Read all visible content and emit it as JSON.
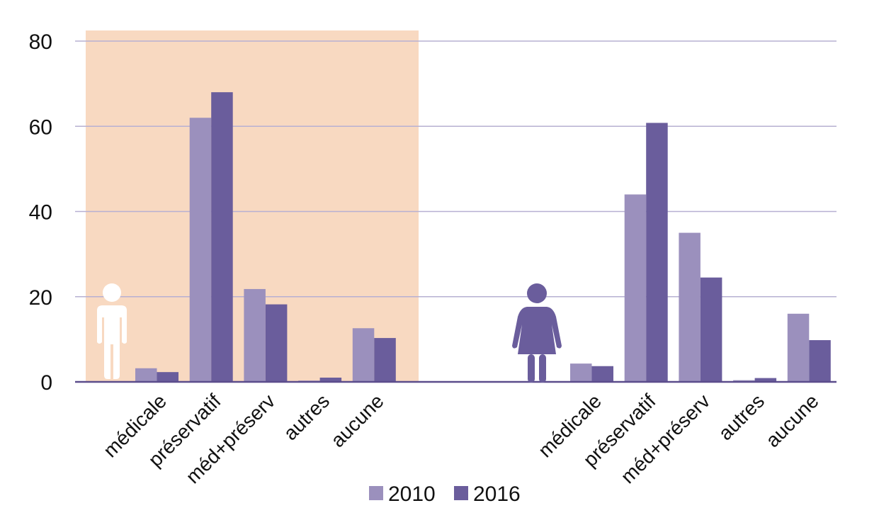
{
  "chart_data": {
    "type": "bar",
    "ylim": [
      0,
      80
    ],
    "yticks": [
      0,
      20,
      40,
      60,
      80
    ],
    "grid": true,
    "legend_position": "bottom-center",
    "colors": {
      "s2010": "#9b90bd",
      "s2016": "#6a5d9c",
      "gridline": "#b7b0d2",
      "axis": "#5b4d8c",
      "highlight_panel": "#f8d9c1",
      "figure_man": "#ffffff",
      "figure_woman": "#6a5d9c"
    },
    "legend": [
      {
        "key": "s2010",
        "label": "2010"
      },
      {
        "key": "s2016",
        "label": "2016"
      }
    ],
    "groups": [
      {
        "figure_icon": "man-icon",
        "categories": [
          "médicale",
          "préservatif",
          "méd+préserv",
          "autres",
          "aucune"
        ],
        "series": [
          {
            "name": "2010",
            "values": [
              3.2,
              62,
              21.8,
              0.3,
              12.6
            ]
          },
          {
            "name": "2016",
            "values": [
              2.3,
              68,
              18.2,
              1.0,
              10.3
            ]
          }
        ]
      },
      {
        "figure_icon": "woman-icon",
        "categories": [
          "médicale",
          "préservatif",
          "méd+préserv",
          "autres",
          "aucune"
        ],
        "series": [
          {
            "name": "2010",
            "values": [
              4.3,
              44,
              35,
              0.4,
              16
            ]
          },
          {
            "name": "2016",
            "values": [
              3.7,
              60.8,
              24.5,
              0.9,
              9.8
            ]
          }
        ]
      }
    ]
  }
}
